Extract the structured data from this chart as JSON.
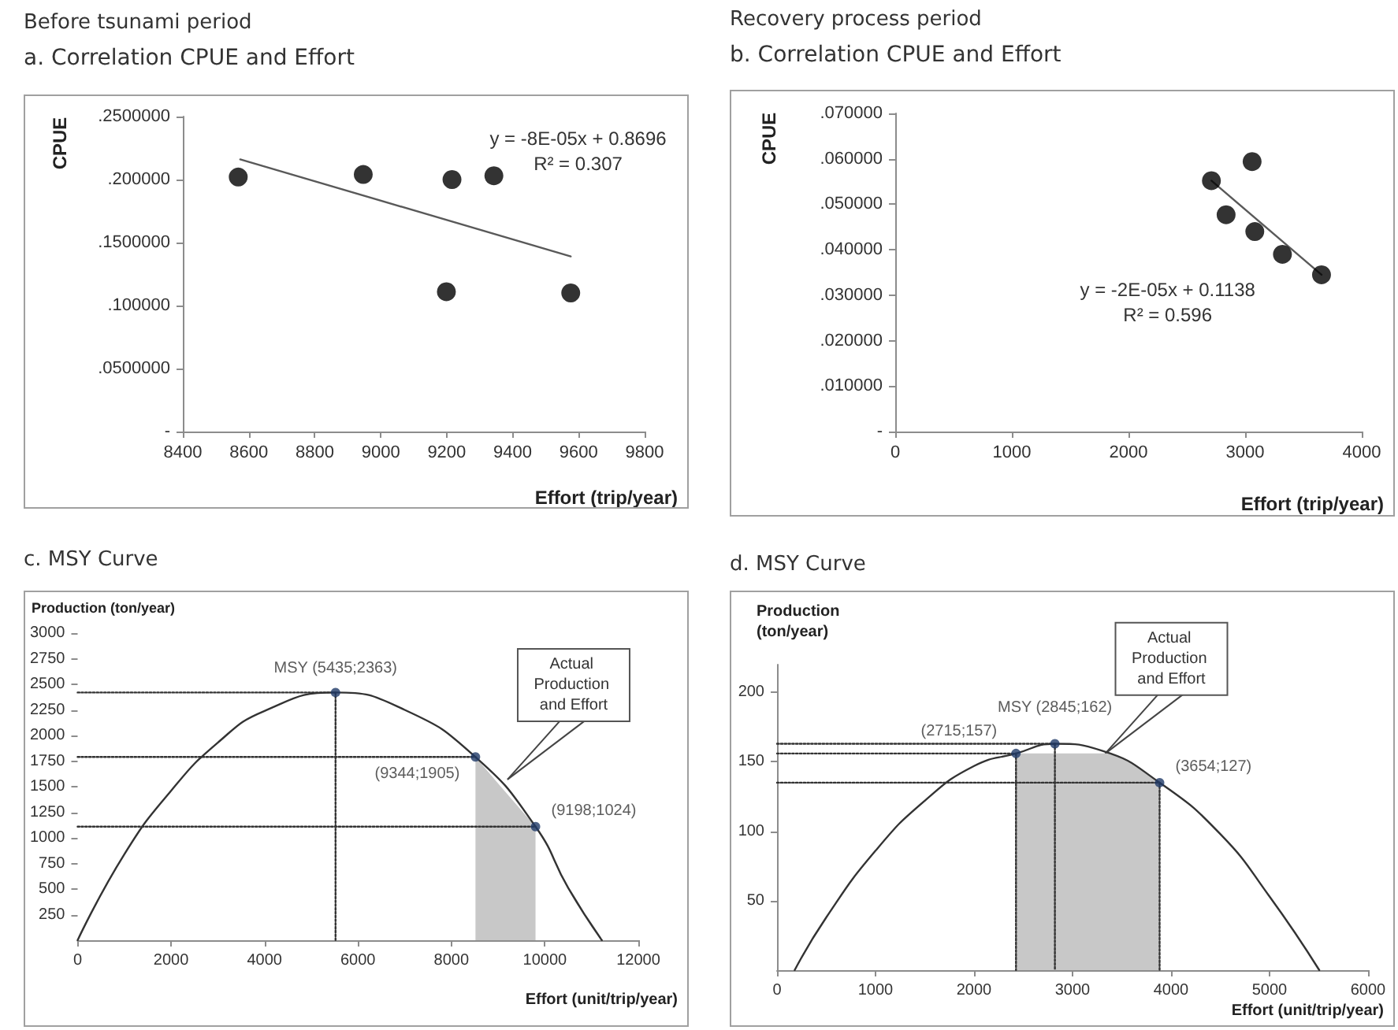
{
  "chart_data": [
    {
      "type": "scatter",
      "title": "Before tsunami period",
      "subtitle": "a. Correlation CPUE and Effort",
      "xlabel": "Effort (trip/year)",
      "ylabel": "CPUE",
      "xlim": [
        8400,
        9800
      ],
      "xticks": [
        8400,
        8600,
        8800,
        9000,
        9200,
        9400,
        9600,
        9800
      ],
      "ylim": [
        0,
        0.25
      ],
      "yticks": [
        {
          "value": 0,
          "label": "-"
        },
        {
          "value": 0.05,
          "label": ".0500000"
        },
        {
          "value": 0.1,
          "label": ".100000"
        },
        {
          "value": 0.15,
          "label": ".1500000"
        },
        {
          "value": 0.2,
          "label": ".200000"
        },
        {
          "value": 0.25,
          "label": ".2500000"
        }
      ],
      "marker": "circle",
      "series": [
        {
          "color": "#000000",
          "x": [
            8568,
            8947,
            9216,
            9343,
            9199,
            9576
          ],
          "values": [
            0.202,
            0.204,
            0.2,
            0.203,
            0.111,
            0.11
          ]
        },
        {
          "type": "line",
          "marker": "none",
          "color": "#595959",
          "x": [
            8574,
            9576
          ],
          "values": [
            0.216,
            0.139
          ]
        }
      ],
      "annotations": [
        "y = -8E-05x + 0.8696",
        "R² = 0.307"
      ]
    },
    {
      "type": "scatter",
      "title": "Recovery process period",
      "subtitle": "b. Correlation CPUE and Effort",
      "xlabel": "Effort (trip/year)",
      "ylabel": "CPUE",
      "xlim": [
        0,
        4000
      ],
      "xticks": [
        0,
        1000,
        2000,
        3000,
        4000
      ],
      "ylim": [
        0,
        0.07
      ],
      "yticks": [
        {
          "value": 0,
          "label": "-"
        },
        {
          "value": 0.01,
          "label": ".010000"
        },
        {
          "value": 0.02,
          "label": ".020000"
        },
        {
          "value": 0.03,
          "label": ".030000"
        },
        {
          "value": 0.04,
          "label": ".040000"
        },
        {
          "value": 0.05,
          "label": ".050000"
        },
        {
          "value": 0.06,
          "label": ".060000"
        },
        {
          "value": 0.07,
          "label": ".070000"
        }
      ],
      "marker": "circle",
      "series": [
        {
          "color": "#000000",
          "x": [
            2711,
            3060,
            2837,
            3083,
            3320,
            3655
          ],
          "values": [
            0.0552,
            0.0594,
            0.0477,
            0.044,
            0.039,
            0.0345
          ]
        },
        {
          "type": "line",
          "marker": "none",
          "color": "#595959",
          "x": [
            2711,
            3655
          ],
          "values": [
            0.0552,
            0.0345
          ]
        }
      ],
      "annotations": [
        "y = -2E-05x + 0.1138",
        "R² = 0.596"
      ]
    },
    {
      "type": "line",
      "title": "c. MSY Curve",
      "xlabel": "Effort (unit/trip/year)",
      "ylabel": "Production (ton/year)",
      "xlim": [
        0,
        12000
      ],
      "xticks": [
        0,
        2000,
        4000,
        6000,
        8000,
        10000,
        12000
      ],
      "ylim": [
        0,
        3000
      ],
      "yticks": [
        250,
        500,
        750,
        1000,
        1250,
        1500,
        1750,
        2000,
        2250,
        2500,
        2750,
        3000
      ],
      "marker": "circle",
      "series": [
        {
          "type": "area",
          "marker": "none",
          "color": "#c8c8c8",
          "x": [
            8515,
            9000,
            9800
          ],
          "values": [
            1790,
            1530,
            1110
          ]
        },
        {
          "marker": "none",
          "color": "#333333",
          "x": [
            0,
            1000,
            2000,
            3000,
            4000,
            5520,
            7000,
            8515,
            9800,
            10500,
            11220
          ],
          "values": [
            0,
            840,
            1460,
            1930,
            2240,
            2420,
            2250,
            1790,
            1110,
            510,
            0
          ]
        },
        {
          "marker": "none",
          "color": "#333333",
          "line_style": "dotted",
          "x": [
            0,
            5520
          ],
          "values": [
            2420,
            2420
          ]
        },
        {
          "marker": "none",
          "color": "#333333",
          "line_style": "dotted",
          "x": [
            5520,
            5520
          ],
          "values": [
            2420,
            0
          ]
        },
        {
          "marker": "none",
          "color": "#333333",
          "line_style": "dotted",
          "x": [
            0,
            8515
          ],
          "values": [
            1790,
            1790
          ]
        },
        {
          "marker": "none",
          "color": "#333333",
          "line_style": "dotted",
          "x": [
            0,
            9800
          ],
          "values": [
            1110,
            1110
          ]
        },
        {
          "type": "scatter",
          "color": "#1f3a68",
          "x": [
            5520,
            8515,
            9800
          ],
          "values": [
            2420,
            1790,
            1110
          ],
          "value_labels": [
            "MSY (5435;2363)",
            "(9344;1905)",
            "(9198;1024)"
          ]
        }
      ],
      "annotations": [
        {
          "text": "Actual Production and Effort",
          "x": 9200,
          "y": 1570
        }
      ]
    },
    {
      "type": "line",
      "title": "d. MSY Curve",
      "xlabel": "Effort (unit/trip/year)",
      "ylabel": "Production (ton/year)",
      "xlim": [
        0,
        6000
      ],
      "xticks": [
        0,
        1000,
        2000,
        3000,
        4000,
        5000,
        6000
      ],
      "ylim": [
        0,
        220
      ],
      "yticks": [
        50,
        100,
        150,
        200
      ],
      "marker": "circle",
      "series": [
        {
          "type": "area",
          "marker": "none",
          "color": "#c8c8c8",
          "x": [
            2426,
            3371,
            3600,
            3884
          ],
          "values": [
            156,
            156,
            149,
            135
          ]
        },
        {
          "marker": "none",
          "color": "#333333",
          "x": [
            179,
            500,
            1000,
            1500,
            2000,
            2426,
            2821,
            3300,
            3884,
            4500,
            5000,
            5505
          ],
          "values": [
            0,
            38,
            86,
            122,
            147,
            156,
            163,
            158,
            135,
            98,
            53,
            0
          ]
        },
        {
          "marker": "none",
          "color": "#333333",
          "line_style": "dotted",
          "x": [
            0,
            2821
          ],
          "values": [
            163,
            163
          ]
        },
        {
          "marker": "none",
          "color": "#333333",
          "line_style": "dotted",
          "x": [
            0,
            2426
          ],
          "values": [
            156,
            156
          ]
        },
        {
          "marker": "none",
          "color": "#333333",
          "line_style": "dotted",
          "x": [
            0,
            3884
          ],
          "values": [
            135,
            135
          ]
        },
        {
          "marker": "none",
          "color": "#333333",
          "line_style": "dotted",
          "x": [
            2426,
            2426
          ],
          "values": [
            156,
            0
          ]
        },
        {
          "marker": "none",
          "color": "#333333",
          "line_style": "dotted",
          "x": [
            2821,
            2821
          ],
          "values": [
            163,
            0
          ]
        },
        {
          "marker": "none",
          "color": "#333333",
          "line_style": "dotted",
          "x": [
            3884,
            3884
          ],
          "values": [
            135,
            0
          ]
        },
        {
          "type": "scatter",
          "color": "#1f3a68",
          "x": [
            2821,
            2426,
            3884
          ],
          "values": [
            163,
            156,
            135
          ],
          "value_labels": [
            "MSY (2845;162)",
            "(2715;157)",
            "(3654;127)"
          ]
        }
      ],
      "annotations": [
        {
          "text": "Actual Production and Effort",
          "x": 3332,
          "y": 156
        }
      ]
    }
  ]
}
